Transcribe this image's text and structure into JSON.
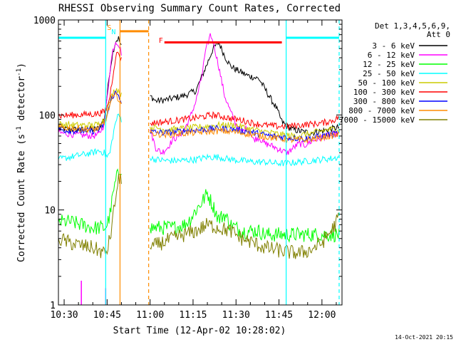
{
  "chart_data": {
    "type": "line",
    "title": "RHESSI Observing Summary Count Rates, Corrected",
    "xlabel": "Start Time (12-Apr-02 10:28:02)",
    "ylabel_parts": [
      "Corrected Count Rate (s",
      "-1",
      " detector",
      "-1",
      ")"
    ],
    "yscale": "log",
    "ylim": [
      1,
      1000
    ],
    "xlim_minutes": [
      -2,
      97
    ],
    "x_ticks": [
      {
        "m": 0,
        "label": "10:30"
      },
      {
        "m": 15,
        "label": "10:45"
      },
      {
        "m": 30,
        "label": "11:00"
      },
      {
        "m": 45,
        "label": "11:15"
      },
      {
        "m": 60,
        "label": "11:30"
      },
      {
        "m": 75,
        "label": "11:45"
      },
      {
        "m": 90,
        "label": "12:00"
      }
    ],
    "y_ticks": [
      {
        "v": 1,
        "label": "1"
      },
      {
        "v": 10,
        "label": "10"
      },
      {
        "v": 100,
        "label": "100"
      },
      {
        "v": 1000,
        "label": "1000"
      }
    ],
    "legend_header": [
      "Det 1,3,4,5,6,9,",
      "Att 0"
    ],
    "legend_placement": "right",
    "series": [
      {
        "name": "3 - 6 keV",
        "color": "#000000",
        "x": [
          -2,
          4,
          10,
          12,
          14,
          15,
          16,
          17,
          18,
          19,
          20,
          21.5,
          30,
          32,
          36,
          42,
          46,
          48,
          50,
          52,
          54,
          56,
          58,
          60,
          62,
          64,
          66,
          68,
          70,
          72,
          74,
          76,
          78,
          80,
          82,
          84,
          86,
          88,
          90,
          92,
          94,
          96
        ],
        "y": [
          72,
          70,
          70,
          72,
          90,
          160,
          300,
          460,
          600,
          640,
          520,
          null,
          160,
          140,
          145,
          160,
          180,
          250,
          350,
          500,
          580,
          420,
          330,
          300,
          280,
          260,
          250,
          240,
          190,
          150,
          120,
          85,
          75,
          70,
          68,
          66,
          65,
          66,
          68,
          70,
          72,
          74
        ]
      },
      {
        "name": "6 - 12 keV",
        "color": "#ff00ff",
        "x": [
          -2,
          4,
          10,
          12,
          14,
          15,
          16,
          17,
          18,
          19,
          20,
          21.5,
          30,
          32,
          34,
          36,
          38,
          40,
          42,
          44,
          46,
          48,
          49,
          50,
          51,
          52,
          54,
          56,
          58,
          60,
          62,
          64,
          66,
          68,
          70,
          72,
          74,
          76,
          78,
          80,
          82,
          84,
          86,
          88,
          90,
          92,
          94,
          96
        ],
        "y": [
          65,
          62,
          60,
          62,
          80,
          150,
          300,
          480,
          600,
          560,
          450,
          null,
          70,
          45,
          40,
          45,
          55,
          60,
          70,
          95,
          140,
          250,
          400,
          550,
          700,
          600,
          320,
          160,
          110,
          80,
          65,
          75,
          55,
          58,
          50,
          48,
          45,
          42,
          40,
          45,
          50,
          48,
          52,
          55,
          58,
          60,
          62,
          64
        ],
        "spikes": [
          {
            "x": 6,
            "y": 1.8
          },
          {
            "x": 14.5,
            "y": 1.5
          }
        ]
      },
      {
        "name": "12 - 25 keV",
        "color": "#00ff00",
        "x": [
          -2,
          2,
          6,
          10,
          14,
          15,
          16,
          17,
          18,
          19,
          20,
          21.5,
          30,
          34,
          38,
          42,
          44,
          46,
          48,
          50,
          52,
          54,
          56,
          58,
          60,
          62,
          64,
          66,
          68,
          70,
          72,
          74,
          76,
          78,
          80,
          82,
          84,
          86,
          88,
          90,
          92,
          94,
          96
        ],
        "y": [
          7.5,
          7.5,
          7,
          6.5,
          6.5,
          7,
          9,
          14,
          20,
          25,
          28,
          null,
          6.5,
          6.5,
          6.5,
          7,
          8,
          10,
          12,
          15,
          11,
          8,
          9,
          7,
          6.5,
          6,
          6,
          6,
          6,
          5.5,
          5.5,
          5.5,
          5.5,
          5.5,
          5.5,
          5.5,
          5.5,
          5.5,
          5.5,
          5.5,
          5.5,
          5.5,
          5.5
        ]
      },
      {
        "name": "25 - 50 keV",
        "color": "#00ffff",
        "x": [
          -2,
          2,
          6,
          10,
          12,
          14,
          15,
          16,
          17,
          18,
          19,
          20,
          21.5,
          30,
          32,
          36,
          40,
          46,
          50,
          54,
          58,
          62,
          66,
          70,
          74,
          78,
          82,
          86,
          90,
          94,
          96
        ],
        "y": [
          34,
          36,
          38,
          40,
          42,
          40,
          36,
          40,
          60,
          85,
          100,
          90,
          null,
          35,
          34,
          33,
          33,
          34,
          36,
          36,
          34,
          33,
          32,
          32,
          31,
          31,
          32,
          33,
          34,
          35,
          36
        ]
      },
      {
        "name": "50 - 100 keV",
        "color": "#cccc00",
        "x": [
          -2,
          4,
          10,
          12,
          14,
          15,
          16,
          17,
          18,
          19,
          20,
          21.5,
          30,
          36,
          42,
          48,
          54,
          60,
          64,
          68,
          72,
          76,
          80,
          84,
          88,
          92,
          96
        ],
        "y": [
          80,
          78,
          78,
          80,
          90,
          110,
          140,
          170,
          190,
          180,
          160,
          null,
          75,
          70,
          72,
          75,
          78,
          78,
          72,
          68,
          65,
          62,
          60,
          62,
          66,
          70,
          72
        ]
      },
      {
        "name": "100 - 300 keV",
        "color": "#ff0000",
        "x": [
          -2,
          4,
          10,
          12,
          14,
          15,
          16,
          17,
          18,
          19,
          20,
          21.5,
          30,
          36,
          42,
          48,
          50,
          52,
          54,
          58,
          62,
          66,
          70,
          74,
          78,
          82,
          86,
          90,
          94,
          96
        ],
        "y": [
          98,
          100,
          102,
          104,
          108,
          120,
          160,
          260,
          420,
          450,
          380,
          null,
          82,
          85,
          90,
          95,
          98,
          100,
          98,
          92,
          88,
          82,
          78,
          76,
          76,
          78,
          80,
          82,
          88,
          95
        ]
      },
      {
        "name": "300 - 800 keV",
        "color": "#0000ff",
        "x": [
          -2,
          4,
          10,
          12,
          14,
          15,
          16,
          17,
          18,
          19,
          20,
          21.5,
          30,
          36,
          42,
          48,
          54,
          60,
          66,
          72,
          78,
          84,
          90,
          96
        ],
        "y": [
          70,
          68,
          68,
          70,
          80,
          100,
          130,
          160,
          170,
          160,
          140,
          null,
          66,
          65,
          68,
          70,
          72,
          70,
          65,
          60,
          58,
          56,
          60,
          64
        ]
      },
      {
        "name": "800 - 7000 keV",
        "color": "#ff8c00",
        "x": [
          -2,
          4,
          10,
          12,
          14,
          15,
          16,
          17,
          18,
          19,
          20,
          21.5,
          30,
          36,
          42,
          48,
          54,
          60,
          66,
          72,
          78,
          84,
          90,
          96
        ],
        "y": [
          74,
          72,
          70,
          72,
          82,
          100,
          130,
          150,
          160,
          150,
          130,
          null,
          64,
          62,
          64,
          66,
          68,
          66,
          62,
          58,
          55,
          54,
          58,
          62
        ]
      },
      {
        "name": "7000 - 15000 keV",
        "color": "#808000",
        "x": [
          -2,
          2,
          6,
          10,
          14,
          15,
          16,
          17,
          18,
          19,
          20,
          21.5,
          30,
          34,
          38,
          42,
          46,
          50,
          54,
          58,
          62,
          66,
          70,
          74,
          78,
          82,
          86,
          90,
          94,
          96
        ],
        "y": [
          5,
          4.5,
          4.2,
          4,
          3.5,
          3.8,
          5,
          8,
          14,
          20,
          22,
          null,
          4,
          4.5,
          5,
          5.5,
          6,
          7,
          6.5,
          6,
          5,
          4.5,
          4,
          3.8,
          3.6,
          3.5,
          3.8,
          4.5,
          6.5,
          8.5
        ]
      }
    ],
    "markers": [
      {
        "label": "S",
        "x_min": 15,
        "color": "#ff8c00"
      },
      {
        "label": "N",
        "x_min": 16.5,
        "color": "#00ffff"
      },
      {
        "label": "F",
        "x_min": 33,
        "color": "#ff0000"
      }
    ],
    "bars": [
      {
        "color": "#00ffff",
        "y": 650,
        "x0": -2,
        "x1": 14.5
      },
      {
        "color": "#00ffff",
        "y": 650,
        "x0": 77.5,
        "x1": 96
      },
      {
        "color": "#ff8c00",
        "y": 760,
        "x0": 19.5,
        "x1": 29.5
      },
      {
        "color": "#ff0000",
        "y": 580,
        "x0": 35,
        "x1": 76
      }
    ],
    "vlines": [
      {
        "x": 14.5,
        "color": "#00ffff",
        "dash": false
      },
      {
        "x": 19.5,
        "color": "#ff8c00",
        "dash": false
      },
      {
        "x": 29.5,
        "color": "#ff8c00",
        "dash": true
      },
      {
        "x": 77.5,
        "color": "#00ffff",
        "dash": false
      },
      {
        "x": 96,
        "color": "#00ffff",
        "dash": true
      }
    ],
    "footer_date": "14-Oct-2021 20:15"
  }
}
